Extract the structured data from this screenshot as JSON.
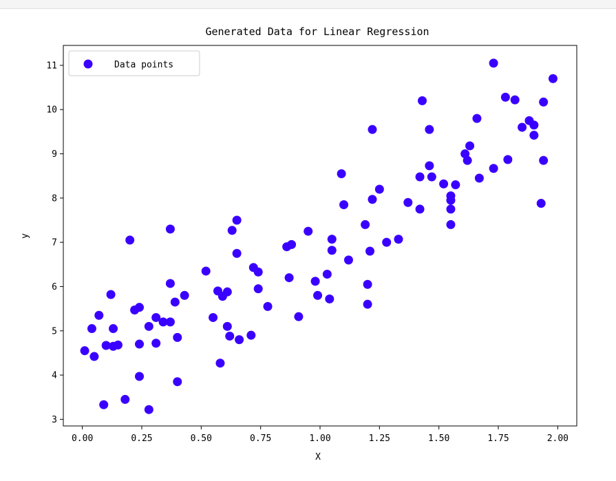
{
  "chart_data": {
    "type": "scatter",
    "title": "Generated Data for Linear Regression",
    "xlabel": "X",
    "ylabel": "y",
    "xlim": [
      -0.08,
      2.08
    ],
    "ylim": [
      2.85,
      11.45
    ],
    "xticks": [
      0.0,
      0.25,
      0.5,
      0.75,
      1.0,
      1.25,
      1.5,
      1.75,
      2.0
    ],
    "xtick_labels": [
      "0.00",
      "0.25",
      "0.50",
      "0.75",
      "1.00",
      "1.25",
      "1.50",
      "1.75",
      "2.00"
    ],
    "yticks": [
      3,
      4,
      5,
      6,
      7,
      8,
      9,
      10,
      11
    ],
    "ytick_labels": [
      "3",
      "4",
      "5",
      "6",
      "7",
      "8",
      "9",
      "10",
      "11"
    ],
    "grid": false,
    "legend": {
      "placement": "top-left",
      "entries": [
        "Data points"
      ]
    },
    "marker_color": "#3a00ff",
    "series": [
      {
        "name": "Data points",
        "points": [
          [
            0.01,
            4.55
          ],
          [
            0.05,
            4.42
          ],
          [
            0.04,
            5.05
          ],
          [
            0.07,
            5.35
          ],
          [
            0.09,
            3.33
          ],
          [
            0.1,
            4.67
          ],
          [
            0.12,
            5.82
          ],
          [
            0.13,
            4.65
          ],
          [
            0.13,
            5.05
          ],
          [
            0.15,
            4.68
          ],
          [
            0.18,
            3.45
          ],
          [
            0.2,
            7.05
          ],
          [
            0.22,
            5.47
          ],
          [
            0.24,
            5.53
          ],
          [
            0.24,
            4.7
          ],
          [
            0.24,
            3.97
          ],
          [
            0.28,
            5.1
          ],
          [
            0.28,
            3.22
          ],
          [
            0.31,
            4.72
          ],
          [
            0.31,
            5.3
          ],
          [
            0.34,
            5.2
          ],
          [
            0.37,
            5.2
          ],
          [
            0.37,
            6.07
          ],
          [
            0.37,
            7.3
          ],
          [
            0.39,
            5.65
          ],
          [
            0.4,
            4.85
          ],
          [
            0.4,
            3.85
          ],
          [
            0.43,
            5.8
          ],
          [
            0.52,
            6.35
          ],
          [
            0.55,
            5.3
          ],
          [
            0.57,
            5.9
          ],
          [
            0.58,
            4.27
          ],
          [
            0.59,
            5.78
          ],
          [
            0.61,
            5.88
          ],
          [
            0.61,
            5.1
          ],
          [
            0.62,
            4.88
          ],
          [
            0.63,
            7.27
          ],
          [
            0.65,
            7.5
          ],
          [
            0.65,
            6.75
          ],
          [
            0.66,
            4.8
          ],
          [
            0.71,
            4.9
          ],
          [
            0.72,
            6.43
          ],
          [
            0.74,
            5.95
          ],
          [
            0.74,
            6.33
          ],
          [
            0.78,
            5.55
          ],
          [
            0.86,
            6.9
          ],
          [
            0.88,
            6.95
          ],
          [
            0.87,
            6.2
          ],
          [
            0.91,
            5.32
          ],
          [
            0.95,
            7.25
          ],
          [
            0.98,
            6.12
          ],
          [
            0.99,
            5.8
          ],
          [
            1.03,
            6.28
          ],
          [
            1.04,
            5.72
          ],
          [
            1.05,
            7.07
          ],
          [
            1.05,
            6.82
          ],
          [
            1.09,
            8.55
          ],
          [
            1.1,
            7.85
          ],
          [
            1.12,
            6.6
          ],
          [
            1.19,
            7.4
          ],
          [
            1.2,
            6.05
          ],
          [
            1.2,
            5.6
          ],
          [
            1.21,
            6.8
          ],
          [
            1.22,
            9.55
          ],
          [
            1.22,
            7.97
          ],
          [
            1.25,
            8.2
          ],
          [
            1.28,
            7.0
          ],
          [
            1.33,
            7.07
          ],
          [
            1.37,
            7.9
          ],
          [
            1.42,
            8.48
          ],
          [
            1.42,
            7.75
          ],
          [
            1.43,
            10.2
          ],
          [
            1.46,
            8.73
          ],
          [
            1.46,
            9.55
          ],
          [
            1.47,
            8.48
          ],
          [
            1.52,
            8.32
          ],
          [
            1.55,
            8.05
          ],
          [
            1.55,
            7.95
          ],
          [
            1.55,
            7.75
          ],
          [
            1.55,
            7.4
          ],
          [
            1.57,
            8.3
          ],
          [
            1.61,
            9.0
          ],
          [
            1.62,
            8.85
          ],
          [
            1.63,
            9.18
          ],
          [
            1.66,
            9.8
          ],
          [
            1.67,
            8.45
          ],
          [
            1.73,
            11.05
          ],
          [
            1.73,
            8.67
          ],
          [
            1.78,
            10.28
          ],
          [
            1.79,
            8.87
          ],
          [
            1.82,
            10.22
          ],
          [
            1.85,
            9.6
          ],
          [
            1.88,
            9.75
          ],
          [
            1.9,
            9.65
          ],
          [
            1.9,
            9.42
          ],
          [
            1.93,
            7.88
          ],
          [
            1.94,
            10.17
          ],
          [
            1.94,
            8.85
          ],
          [
            1.98,
            10.7
          ]
        ]
      }
    ]
  }
}
